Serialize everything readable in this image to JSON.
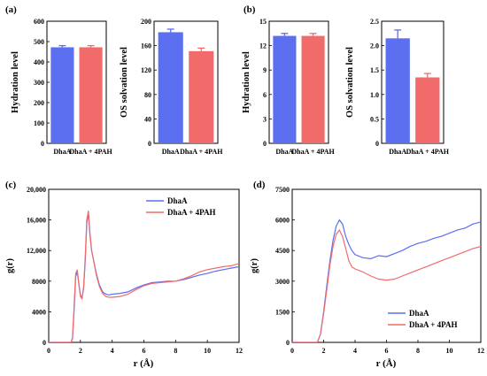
{
  "colors": {
    "dhaa": "#5b6ff0",
    "dhaa_4pah": "#f26b6b"
  },
  "chart_data": [
    {
      "panel": "(a)",
      "id": "a1",
      "type": "bar",
      "categories": [
        "DhaA",
        "DhaA + 4PAH"
      ],
      "values": [
        472,
        472
      ],
      "errors": [
        8,
        8
      ],
      "ylabel": "Hydration level",
      "ylim": [
        0,
        600
      ],
      "yticks": [
        0,
        100,
        200,
        300,
        400,
        500,
        600
      ],
      "ytick_labels": [
        "0",
        "100",
        "200",
        "300",
        "400",
        "500",
        "600"
      ]
    },
    {
      "panel": "",
      "id": "a2",
      "type": "bar",
      "categories": [
        "DhaA",
        "DhaA + 4PAH"
      ],
      "values": [
        182,
        151
      ],
      "errors": [
        5,
        5
      ],
      "ylabel": "OS solvation level",
      "ylim": [
        0,
        200
      ],
      "yticks": [
        0,
        40,
        80,
        120,
        160,
        200
      ],
      "ytick_labels": [
        "0",
        "40",
        "80",
        "120",
        "160",
        "200"
      ]
    },
    {
      "panel": "(b)",
      "id": "b1",
      "type": "bar",
      "categories": [
        "DhaA",
        "DhaA + 4PAH"
      ],
      "values": [
        13.2,
        13.2
      ],
      "errors": [
        0.3,
        0.3
      ],
      "ylabel": "Hydration level",
      "ylim": [
        0,
        15
      ],
      "yticks": [
        0,
        3,
        6,
        9,
        12,
        15
      ],
      "ytick_labels": [
        "0",
        "3",
        "6",
        "9",
        "12",
        "15"
      ]
    },
    {
      "panel": "",
      "id": "b2",
      "type": "bar",
      "categories": [
        "DhaA",
        "DhaA + 4PAH"
      ],
      "values": [
        2.15,
        1.35
      ],
      "errors": [
        0.17,
        0.08
      ],
      "ylabel": "OS solvation level",
      "ylim": [
        0,
        2.5
      ],
      "yticks": [
        0,
        0.5,
        1.0,
        1.5,
        2.0,
        2.5
      ],
      "ytick_labels": [
        "0",
        "0.5",
        "1.0",
        "1.5",
        "2.0",
        "2.5"
      ]
    },
    {
      "panel": "(c)",
      "id": "c",
      "type": "line",
      "xlabel": "r (Å)",
      "ylabel": "g(r)",
      "xlim": [
        0,
        12
      ],
      "ylim": [
        0,
        20000
      ],
      "xticks": [
        0,
        2,
        4,
        6,
        8,
        10,
        12
      ],
      "xtick_labels": [
        "0",
        "2",
        "4",
        "6",
        "8",
        "10",
        "12"
      ],
      "yticks": [
        0,
        4000,
        8000,
        12000,
        16000,
        20000
      ],
      "ytick_labels": [
        "0",
        "4000",
        "8000",
        "12,000",
        "16,000",
        "20,000"
      ],
      "legend": "top-right",
      "series": [
        {
          "name": "DhaA",
          "x": [
            1.4,
            1.5,
            1.6,
            1.7,
            1.8,
            1.9,
            2.0,
            2.1,
            2.2,
            2.3,
            2.4,
            2.5,
            2.6,
            2.7,
            2.8,
            2.9,
            3.0,
            3.2,
            3.4,
            3.6,
            3.8,
            4.0,
            4.5,
            5.0,
            5.5,
            6.0,
            6.5,
            7.0,
            7.5,
            8.0,
            8.5,
            9.0,
            9.5,
            10.0,
            10.5,
            11.0,
            11.5,
            12.0
          ],
          "y": [
            0,
            500,
            4200,
            8600,
            9200,
            7700,
            6200,
            5800,
            7000,
            10500,
            15500,
            17000,
            14000,
            12000,
            11000,
            10000,
            9000,
            7500,
            6600,
            6300,
            6200,
            6300,
            6400,
            6600,
            7100,
            7500,
            7800,
            7900,
            8000,
            8000,
            8200,
            8500,
            8800,
            9000,
            9300,
            9500,
            9700,
            9900
          ]
        },
        {
          "name": "DhaA + 4PAH",
          "x": [
            1.4,
            1.5,
            1.6,
            1.7,
            1.8,
            1.9,
            2.0,
            2.1,
            2.2,
            2.3,
            2.4,
            2.5,
            2.6,
            2.7,
            2.8,
            2.9,
            3.0,
            3.2,
            3.4,
            3.6,
            3.8,
            4.0,
            4.5,
            5.0,
            5.5,
            6.0,
            6.5,
            7.0,
            7.5,
            8.0,
            8.5,
            9.0,
            9.5,
            10.0,
            10.5,
            11.0,
            11.5,
            12.0
          ],
          "y": [
            0,
            600,
            4800,
            9000,
            9500,
            7600,
            6000,
            5700,
            7200,
            11000,
            16000,
            17200,
            14300,
            12100,
            11000,
            9900,
            8800,
            7300,
            6400,
            6000,
            5900,
            5900,
            6000,
            6300,
            6900,
            7400,
            7700,
            7800,
            7900,
            8000,
            8300,
            8700,
            9200,
            9500,
            9700,
            9900,
            10000,
            10300
          ]
        }
      ]
    },
    {
      "panel": "(d)",
      "id": "d",
      "type": "line",
      "xlabel": "r (Å)",
      "ylabel": "g(r)",
      "xlim": [
        0,
        12
      ],
      "ylim": [
        0,
        7500
      ],
      "xticks": [
        0,
        2,
        4,
        6,
        8,
        10,
        12
      ],
      "xtick_labels": [
        "0",
        "2",
        "4",
        "6",
        "8",
        "10",
        "12"
      ],
      "yticks": [
        0,
        1500,
        3000,
        4500,
        6000,
        7500
      ],
      "ytick_labels": [
        "0",
        "1500",
        "3000",
        "4500",
        "6000",
        "7500"
      ],
      "legend": "bottom-right",
      "series": [
        {
          "name": "DhaA",
          "x": [
            1.6,
            1.8,
            2.0,
            2.2,
            2.4,
            2.6,
            2.8,
            3.0,
            3.2,
            3.4,
            3.6,
            3.8,
            4.0,
            4.5,
            5.0,
            5.5,
            6.0,
            6.5,
            7.0,
            7.5,
            8.0,
            8.5,
            9.0,
            9.5,
            10.0,
            10.5,
            11.0,
            11.5,
            12.0
          ],
          "y": [
            0,
            400,
            1500,
            2800,
            4000,
            5000,
            5700,
            6000,
            5800,
            5200,
            4800,
            4500,
            4300,
            4150,
            4100,
            4250,
            4200,
            4350,
            4500,
            4700,
            4850,
            4950,
            5100,
            5200,
            5350,
            5500,
            5600,
            5800,
            5900
          ]
        },
        {
          "name": "DhaA + 4PAH",
          "x": [
            1.6,
            1.8,
            2.0,
            2.2,
            2.4,
            2.6,
            2.8,
            3.0,
            3.2,
            3.4,
            3.6,
            3.8,
            4.0,
            4.5,
            5.0,
            5.5,
            6.0,
            6.5,
            7.0,
            7.5,
            8.0,
            8.5,
            9.0,
            9.5,
            10.0,
            10.5,
            11.0,
            11.5,
            12.0
          ],
          "y": [
            0,
            400,
            1400,
            2600,
            3800,
            4700,
            5300,
            5500,
            5200,
            4600,
            4000,
            3700,
            3600,
            3450,
            3250,
            3100,
            3050,
            3100,
            3250,
            3400,
            3550,
            3700,
            3850,
            4000,
            4150,
            4300,
            4450,
            4600,
            4700
          ]
        }
      ]
    }
  ]
}
